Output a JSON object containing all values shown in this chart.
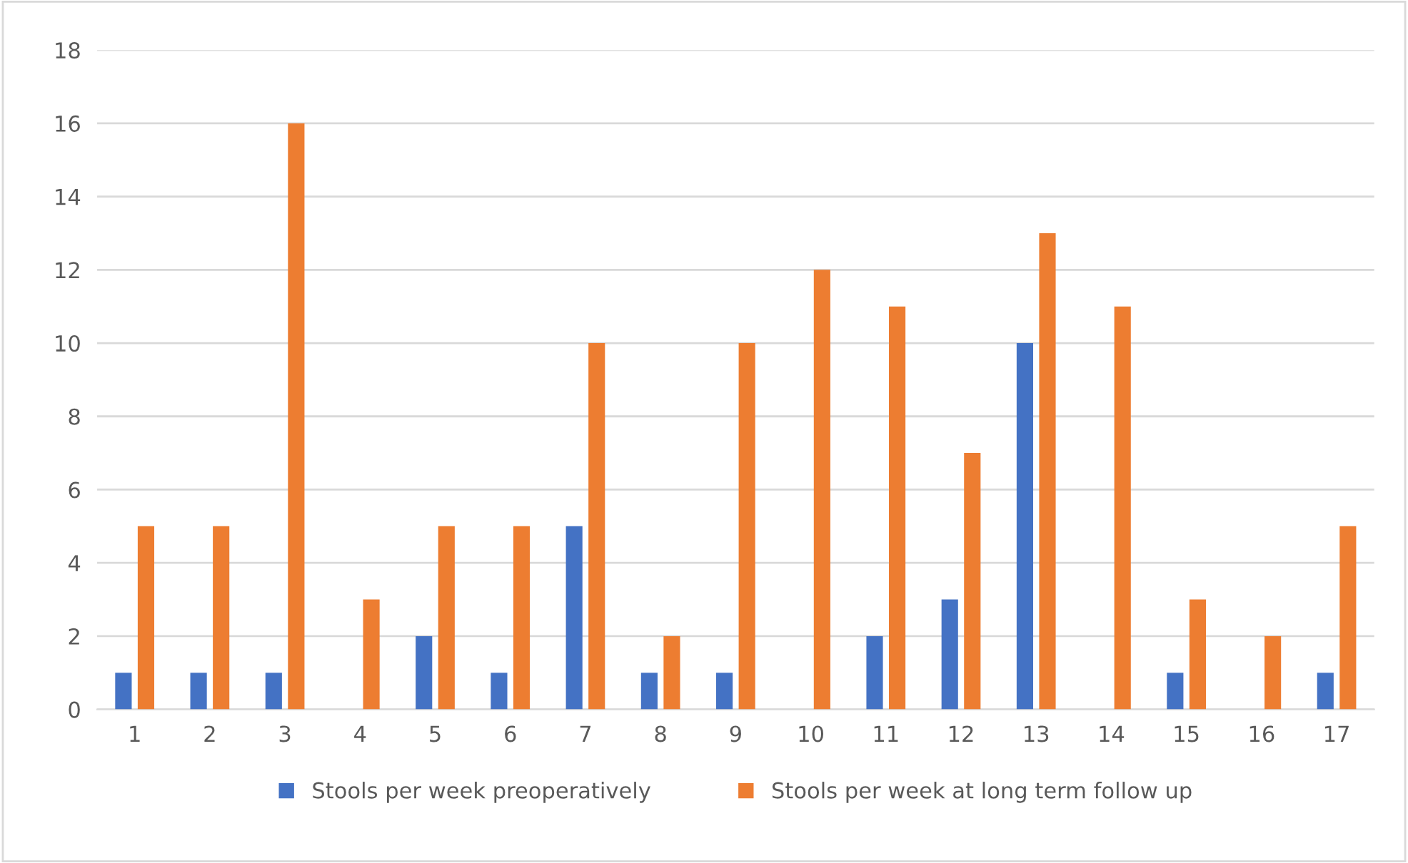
{
  "chart_data": {
    "type": "bar",
    "categories": [
      "1",
      "2",
      "3",
      "4",
      "5",
      "6",
      "7",
      "8",
      "9",
      "10",
      "11",
      "12",
      "13",
      "14",
      "15",
      "16",
      "17"
    ],
    "series": [
      {
        "name": "Stools per week preoperatively",
        "color": "#4472c4",
        "values": [
          1,
          1,
          1,
          0,
          2,
          1,
          5,
          1,
          1,
          0,
          2,
          3,
          10,
          0,
          1,
          0,
          1
        ]
      },
      {
        "name": "Stools per week at long term follow up",
        "color": "#ed7d31",
        "values": [
          5,
          5,
          16,
          3,
          5,
          5,
          10,
          2,
          10,
          12,
          11,
          7,
          13,
          11,
          3,
          2,
          5
        ]
      }
    ],
    "ylim": [
      0,
      18
    ],
    "yticks": [
      0,
      2,
      4,
      6,
      8,
      10,
      12,
      14,
      16,
      18
    ],
    "grid": "y",
    "legend": "bottom"
  }
}
